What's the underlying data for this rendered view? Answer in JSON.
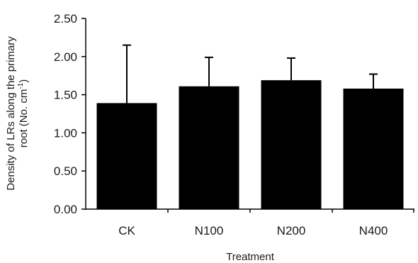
{
  "chart_data": {
    "type": "bar",
    "categories": [
      "CK",
      "N100",
      "N200",
      "N400"
    ],
    "values": [
      1.39,
      1.61,
      1.69,
      1.58
    ],
    "errors": [
      0.76,
      0.38,
      0.29,
      0.19
    ],
    "ylim": [
      0,
      2.5
    ],
    "yticks": [
      "0.00",
      "0.50",
      "1.00",
      "1.50",
      "2.00",
      "2.50"
    ],
    "xlabel": "Treatment",
    "ylabel_line1": "Density of LRs along the primary",
    "ylabel_line2_pre": "root (No. cm",
    "ylabel_sup": "-1",
    "ylabel_line2_post": ")",
    "bar_color": "#000000",
    "grid": false
  }
}
